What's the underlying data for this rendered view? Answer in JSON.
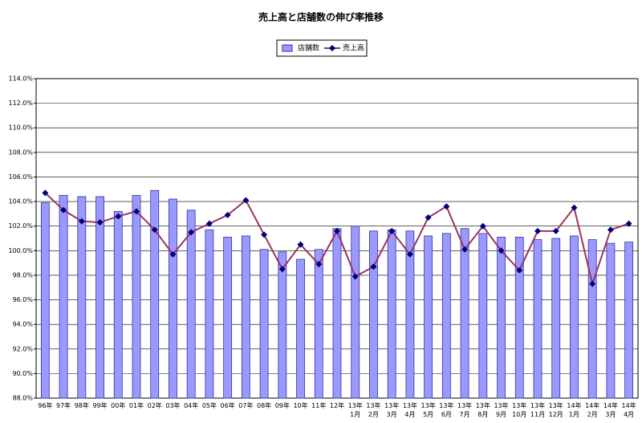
{
  "chart_data": {
    "type": "combo",
    "title": "売上高と店舗数の伸び率推移",
    "categories": [
      "96年",
      "97年",
      "98年",
      "99年",
      "00年",
      "01年",
      "02年",
      "03年",
      "04年",
      "05年",
      "06年",
      "07年",
      "08年",
      "09年",
      "10年",
      "11年",
      "12年",
      "13年\n1月",
      "13年\n2月",
      "13年\n3月",
      "13年\n4月",
      "13年\n5月",
      "13年\n6月",
      "13年\n7月",
      "13年\n8月",
      "13年\n9月",
      "13年\n10月",
      "13年\n11月",
      "13年\n12月",
      "14年\n1月",
      "14年\n2月",
      "14年\n3月",
      "14年\n4月"
    ],
    "series": [
      {
        "name": "店舗数",
        "type": "bar",
        "color": "#9999ff",
        "values": [
          103.9,
          104.5,
          104.4,
          104.4,
          103.2,
          104.5,
          104.9,
          104.2,
          103.3,
          101.7,
          101.1,
          101.2,
          100.1,
          99.9,
          99.3,
          100.1,
          101.8,
          102.0,
          101.6,
          101.7,
          101.6,
          101.2,
          101.4,
          101.8,
          101.4,
          101.1,
          101.1,
          100.9,
          101.0,
          101.2,
          100.9,
          100.6,
          100.7
        ]
      },
      {
        "name": "売上高",
        "type": "line",
        "color": "#993366",
        "values": [
          104.7,
          103.3,
          102.4,
          102.3,
          102.8,
          103.2,
          101.7,
          99.7,
          101.5,
          102.2,
          102.9,
          104.1,
          101.3,
          98.5,
          100.5,
          98.9,
          101.6,
          97.9,
          98.7,
          101.6,
          99.7,
          102.7,
          103.6,
          100.1,
          102.0,
          100.0,
          98.4,
          101.6,
          101.6,
          103.5,
          97.3,
          101.7,
          102.2
        ]
      }
    ],
    "ylim": [
      88,
      114
    ],
    "yticks": [
      {
        "value": 88,
        "label": "88.0%"
      },
      {
        "value": 90,
        "label": "90.0%"
      },
      {
        "value": 92,
        "label": "92.0%"
      },
      {
        "value": 94,
        "label": "94.0%"
      },
      {
        "value": 96,
        "label": "96.0%"
      },
      {
        "value": 98,
        "label": "98.0%"
      },
      {
        "value": 100,
        "label": "100.0%"
      },
      {
        "value": 102,
        "label": "102.0%"
      },
      {
        "value": 104,
        "label": "104.0%"
      },
      {
        "value": 106,
        "label": "106.0%"
      },
      {
        "value": 108,
        "label": "108.0%"
      },
      {
        "value": 110,
        "label": "110.0%"
      },
      {
        "value": 112,
        "label": "112.0%"
      },
      {
        "value": 114,
        "label": "114.0%"
      }
    ],
    "grid": true,
    "legend": "top"
  }
}
